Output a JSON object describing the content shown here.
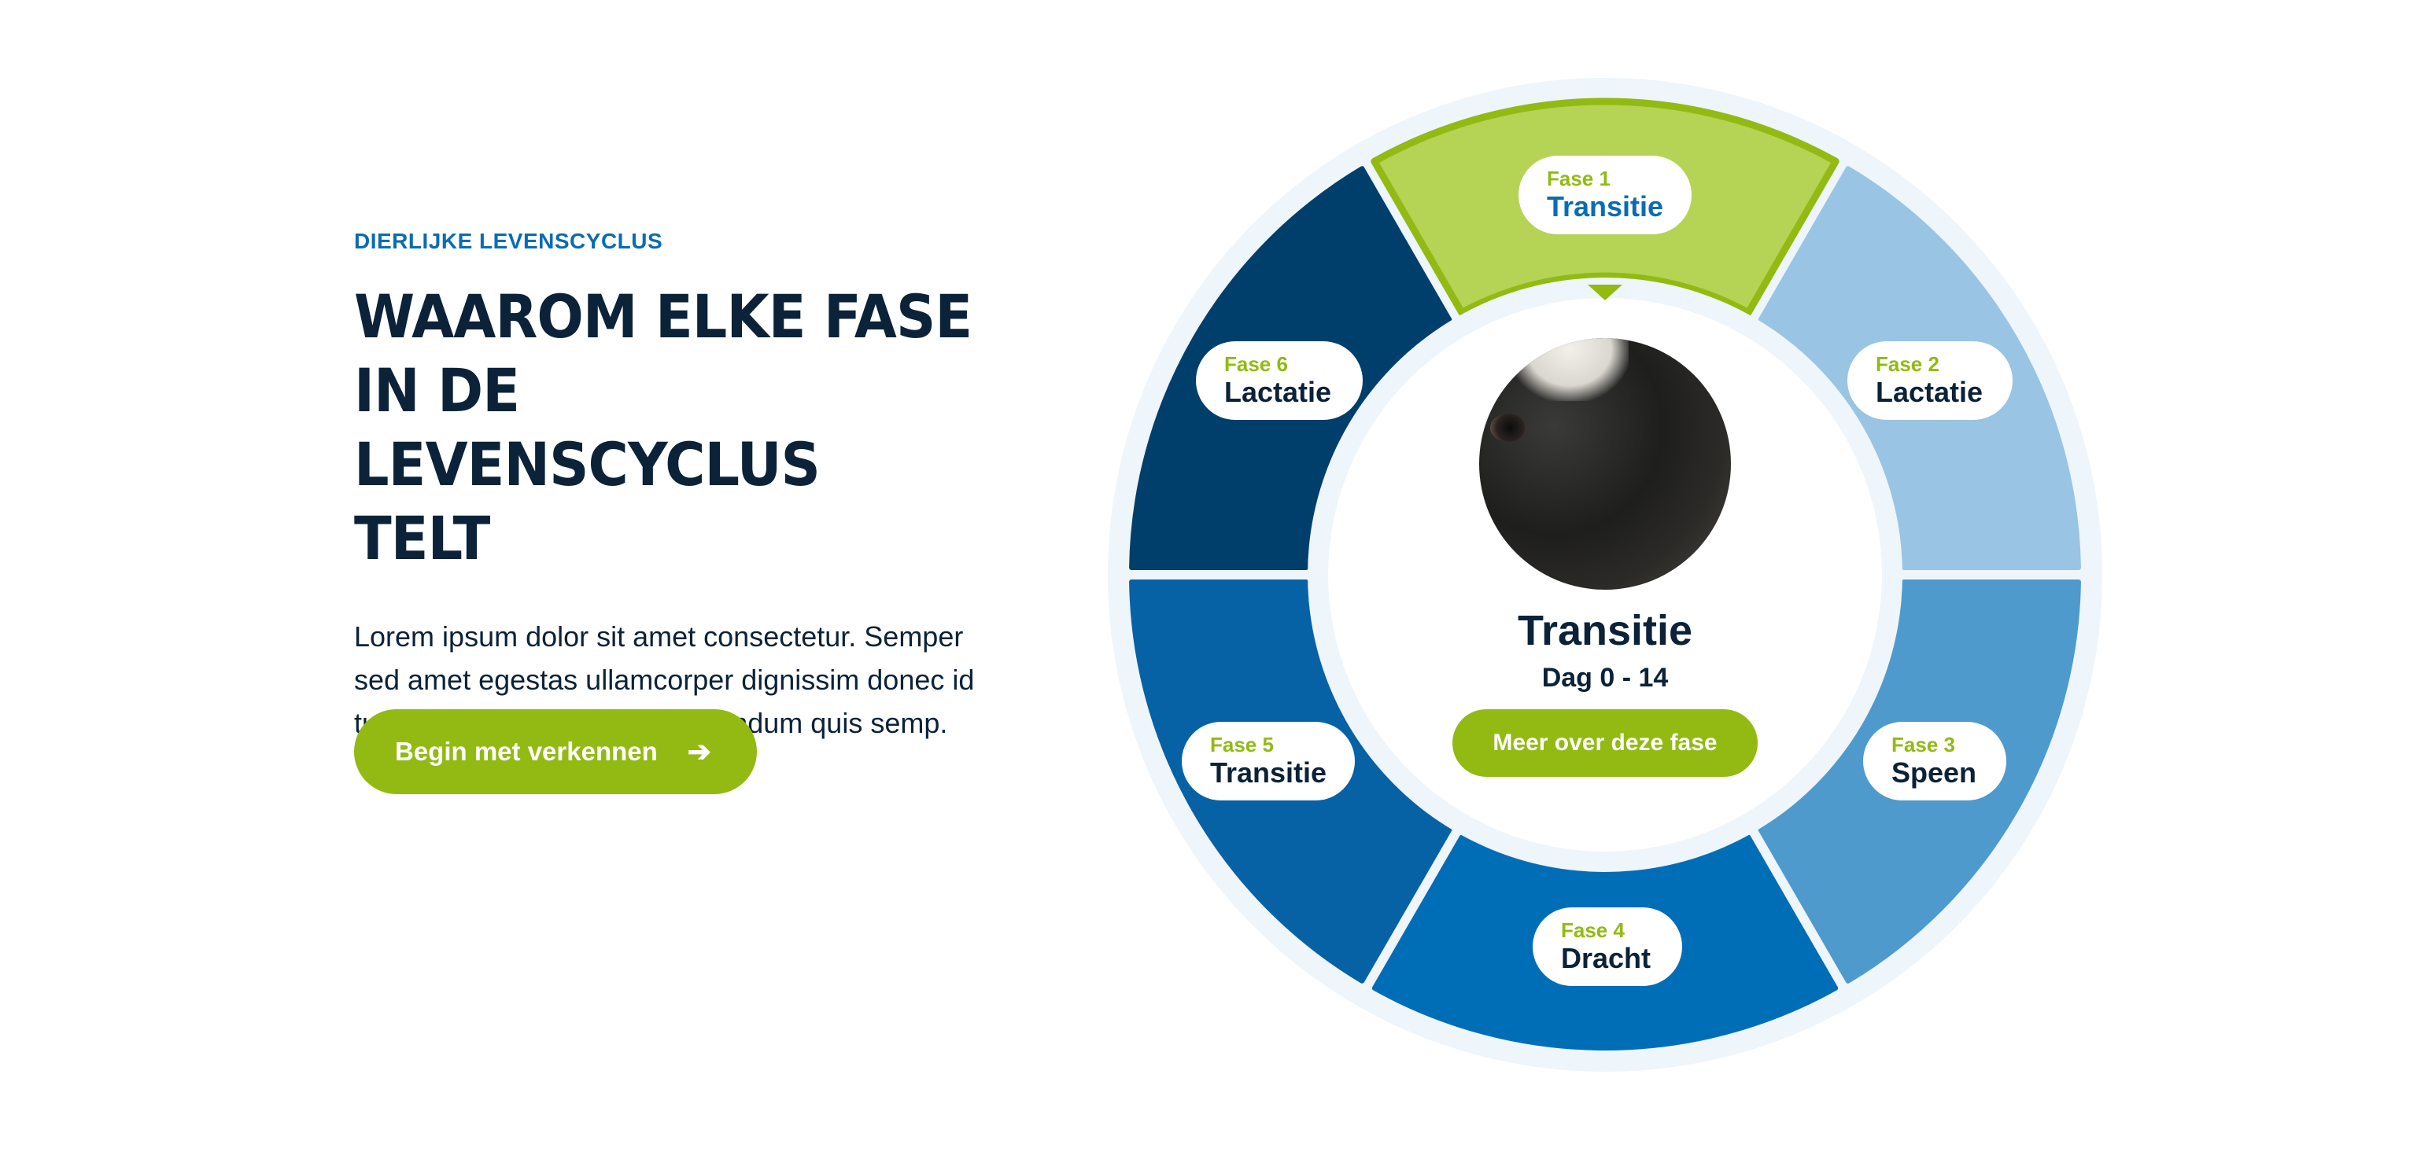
{
  "section": {
    "eyebrow": "DIERLIJKE LEVENSCYCLUS",
    "headline": "WAAROM ELKE FASE\nIN DE LEVENSCYCLUS\nTELT",
    "body": "Lorem ipsum dolor sit amet consectetur. Semper sed amet egestas ullamcorper dignissim donec id turpis. Turpis consectetur bibendum quis semp.",
    "cta_label": "Begin met verkennen",
    "cta_icon": "arrow-right-icon"
  },
  "wheel": {
    "phases": [
      {
        "fase": "Fase 1",
        "name": "Transitie",
        "color": "#b5d456",
        "active": true
      },
      {
        "fase": "Fase 2",
        "name": "Lactatie",
        "color": "#9ac4e3",
        "active": false
      },
      {
        "fase": "Fase 3",
        "name": "Speen",
        "color": "#4e9acd",
        "active": false
      },
      {
        "fase": "Fase 4",
        "name": "Dracht",
        "color": "#006eb7",
        "active": false
      },
      {
        "fase": "Fase 5",
        "name": "Transitie",
        "color": "#0762a5",
        "active": false
      },
      {
        "fase": "Fase 6",
        "name": "Lactatie",
        "color": "#003f6b",
        "active": false
      }
    ],
    "active_border_color": "#92ba13",
    "ring_color": "#eef5fb"
  },
  "center": {
    "photo": "cow-photo",
    "title": "Transitie",
    "subtitle": "Dag 0 - 14",
    "button_label": "Meer over deze fase"
  }
}
